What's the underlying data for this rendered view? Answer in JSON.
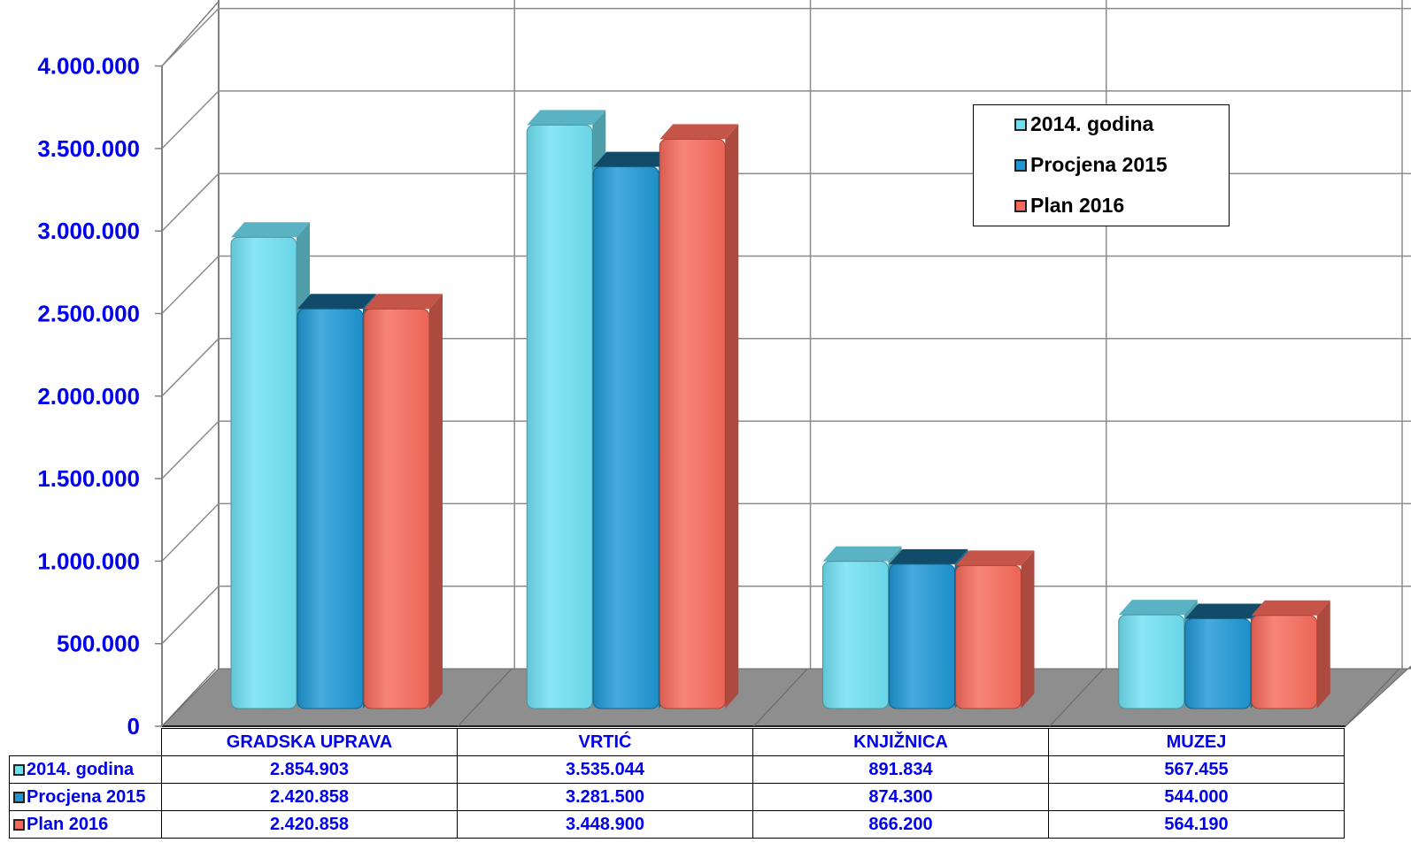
{
  "chart_data": {
    "type": "bar",
    "categories": [
      "GRADSKA UPRAVA",
      "VRTIĆ",
      "KNJIŽNICA",
      "MUZEJ"
    ],
    "series": [
      {
        "name": "2014. godina",
        "color": "#6fe0f2",
        "values": [
          2854903,
          3535044,
          891834,
          567455
        ],
        "labels": [
          "2.854.903",
          "3.535.044",
          "891.834",
          "567.455"
        ]
      },
      {
        "name": "Procjena 2015",
        "color": "#1f97d4",
        "values": [
          2420858,
          3281500,
          874300,
          544000
        ],
        "labels": [
          "2.420.858",
          "3.281.500",
          "874.300",
          "544.000"
        ]
      },
      {
        "name": "Plan 2016",
        "color": "#f76a5b",
        "values": [
          2420858,
          3448900,
          866200,
          564190
        ],
        "labels": [
          "2.420.858",
          "3.448.900",
          "866.200",
          "564.190"
        ]
      }
    ],
    "yticks": [
      0,
      500000,
      1000000,
      1500000,
      2000000,
      2500000,
      3000000,
      3500000,
      4000000
    ],
    "ytick_labels": [
      "0",
      "500.000",
      "1.000.000",
      "1.500.000",
      "2.000.000",
      "2.500.000",
      "3.000.000",
      "3.500.000",
      "4.000.000"
    ],
    "ylim": [
      0,
      4000000
    ],
    "grid": true,
    "legend_position": "top-right",
    "data_table": true
  }
}
